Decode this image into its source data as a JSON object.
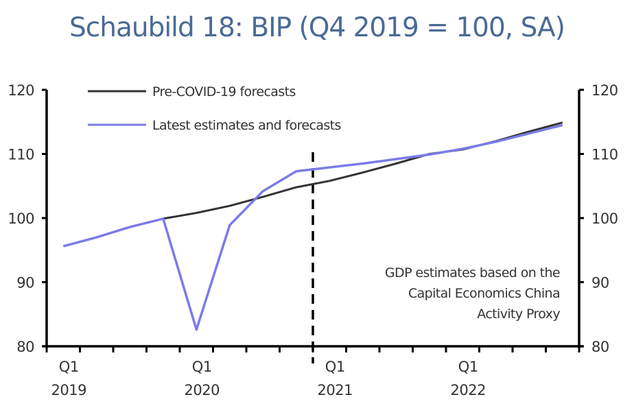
{
  "chart_data": {
    "type": "line",
    "title": "Schaubild 18: BIP (Q4 2019 = 100, SA)",
    "xlabel": "",
    "ylabel": "",
    "ylim": [
      80,
      120
    ],
    "yticks": [
      80,
      90,
      100,
      110,
      120
    ],
    "ytick_labels": [
      "80",
      "90",
      "100",
      "110",
      "120"
    ],
    "y_axes": "both-left-and-right",
    "grid": false,
    "x": [
      "Q1 2019",
      "Q2 2019",
      "Q3 2019",
      "Q4 2019",
      "Q1 2020",
      "Q2 2020",
      "Q3 2020",
      "Q4 2020",
      "Q1 2021",
      "Q2 2021",
      "Q3 2021",
      "Q4 2021",
      "Q1 2022",
      "Q2 2022",
      "Q3 2022",
      "Q4 2022"
    ],
    "xtick_labels": [
      {
        "index": 0,
        "line1": "Q1",
        "line2": "2019"
      },
      {
        "index": 4,
        "line1": "Q1",
        "line2": "2020"
      },
      {
        "index": 8,
        "line1": "Q1",
        "line2": "2021"
      },
      {
        "index": 12,
        "line1": "Q1",
        "line2": "2022"
      }
    ],
    "series": [
      {
        "name": "Pre-COVID-19 forecasts",
        "color": "#333333",
        "values": [
          null,
          null,
          null,
          99.9,
          100.8,
          101.9,
          103.3,
          104.8,
          105.8,
          107.1,
          108.5,
          110.0,
          110.7,
          112.0,
          113.5,
          114.9
        ]
      },
      {
        "name": "Latest estimates and forecasts",
        "color": "#7b7be8",
        "values": [
          95.6,
          97.0,
          98.6,
          99.9,
          82.6,
          98.9,
          104.2,
          107.3,
          107.9,
          108.5,
          109.2,
          109.9,
          110.8,
          111.9,
          113.2,
          114.5
        ]
      }
    ],
    "legend_position": "top-left",
    "vertical_marker": {
      "style": "dashed",
      "between": [
        "Q4 2020",
        "Q1 2021"
      ]
    },
    "annotation": [
      "GDP estimates based on the",
      "Capital Economics China",
      "Activity Proxy"
    ],
    "annotation_position": "bottom-right"
  }
}
